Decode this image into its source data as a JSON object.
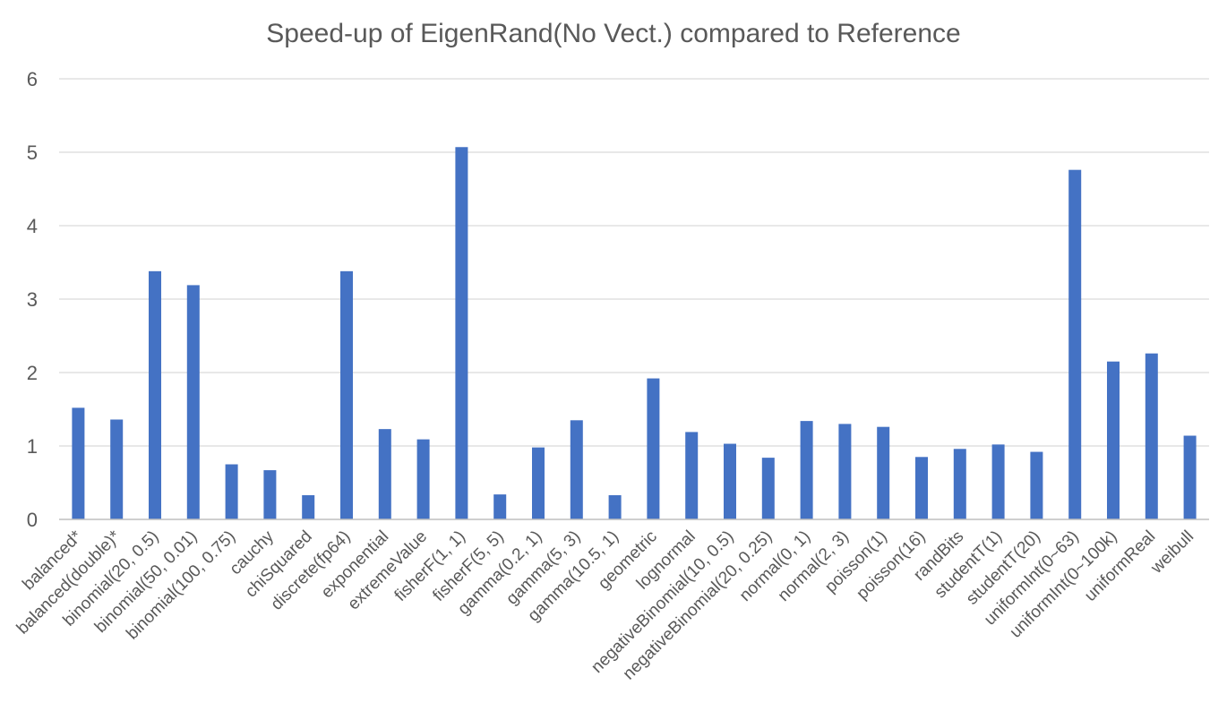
{
  "chart_data": {
    "type": "bar",
    "title": "Speed-up of EigenRand(No Vect.) compared to Reference",
    "xlabel": "",
    "ylabel": "",
    "ylim": [
      0,
      6
    ],
    "yticks": [
      "0",
      "1",
      "2",
      "3",
      "4",
      "5",
      "6"
    ],
    "grid": true,
    "legend": "none",
    "bar_color": "#4472C4",
    "categories": [
      "balanced*",
      "balanced(double)*",
      "binomial(20, 0.5)",
      "binomial(50, 0.01)",
      "binomial(100, 0.75)",
      "cauchy",
      "chiSquared",
      "discrete(fp64)",
      "exponential",
      "extremeValue",
      "fisherF(1, 1)",
      "fisherF(5, 5)",
      "gamma(0.2, 1)",
      "gamma(5, 3)",
      "gamma(10.5, 1)",
      "geometric",
      "lognormal",
      "negativeBinomial(10, 0.5)",
      "negativeBinomial(20, 0.25)",
      "normal(0, 1)",
      "normal(2, 3)",
      "poisson(1)",
      "poisson(16)",
      "randBits",
      "studentT(1)",
      "studentT(20)",
      "uniformInt(0~63)",
      "uniformInt(0~100k)",
      "uniformReal",
      "weibull"
    ],
    "values": [
      1.52,
      1.36,
      3.38,
      3.19,
      0.75,
      0.67,
      0.33,
      3.38,
      1.23,
      1.09,
      5.07,
      0.34,
      0.98,
      1.35,
      0.33,
      1.92,
      1.19,
      1.03,
      0.84,
      1.34,
      1.3,
      1.26,
      0.85,
      0.96,
      1.02,
      0.92,
      4.76,
      2.15,
      2.26,
      1.14
    ]
  }
}
